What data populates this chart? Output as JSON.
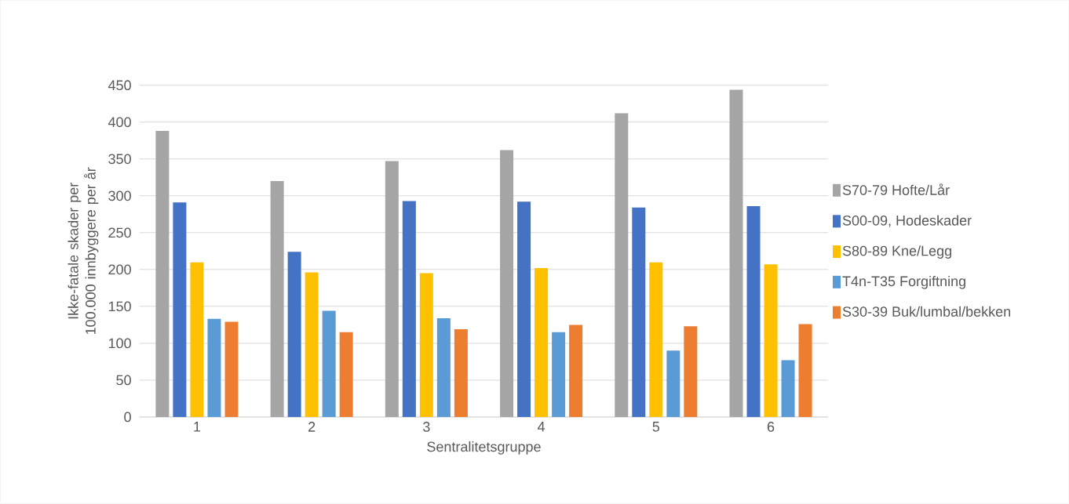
{
  "chart_data": {
    "type": "bar",
    "xlabel": "Sentralitetsgruppe",
    "ylabel": "Ikke-fatale skader per 100.000 innbyggere per år",
    "categories": [
      "1",
      "2",
      "3",
      "4",
      "5",
      "6"
    ],
    "series": [
      {
        "name": "S70-79 Hofte/Lår",
        "color": "#a5a5a5",
        "values": [
          388,
          320,
          347,
          362,
          412,
          444
        ]
      },
      {
        "name": "S00-09, Hodeskader",
        "color": "#4472c4",
        "values": [
          291,
          224,
          293,
          292,
          284,
          286
        ]
      },
      {
        "name": "S80-89 Kne/Legg",
        "color": "#ffc000",
        "values": [
          210,
          196,
          195,
          202,
          210,
          207
        ]
      },
      {
        "name": "T4n-T35 Forgiftning",
        "color": "#5b9bd5",
        "values": [
          133,
          144,
          134,
          115,
          90,
          77
        ]
      },
      {
        "name": "S30-39 Buk/lumbal/bekken",
        "color": "#ed7d31",
        "values": [
          129,
          115,
          119,
          125,
          123,
          126
        ]
      }
    ],
    "ylim": [
      0,
      450
    ],
    "yticks": [
      0,
      50,
      100,
      150,
      200,
      250,
      300,
      350,
      400,
      450
    ],
    "grid": "y",
    "legend": "right"
  }
}
